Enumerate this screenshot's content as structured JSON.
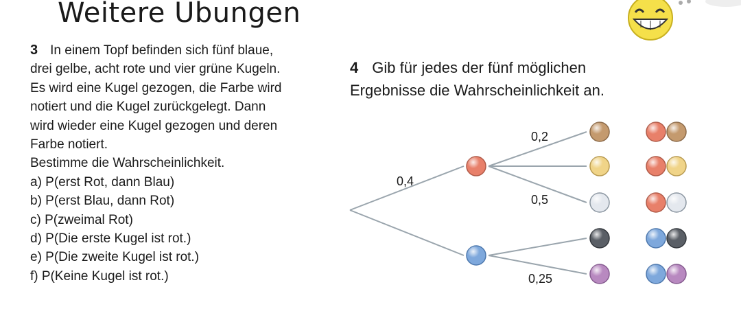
{
  "header": {
    "title": "Weitere Übungen"
  },
  "exercise3": {
    "number": "3",
    "lines": [
      "In einem Topf befinden sich fünf blaue,",
      "drei gelbe, acht rote und vier grüne Kugeln.",
      "Es wird eine Kugel gezogen, die Farbe wird",
      "notiert und die Kugel zurückgelegt. Dann",
      "wird wieder eine Kugel gezogen und deren",
      "Farbe notiert.",
      "Bestimme die Wahrscheinlichkeit."
    ],
    "tasks": [
      "a)  P(erst Rot, dann Blau)",
      "b)  P(erst Blau, dann Rot)",
      "c)  P(zweimal Rot)",
      "d)  P(Die erste Kugel ist rot.)",
      "e)  P(Die zweite Kugel ist rot.)",
      "f)  P(Keine Kugel ist rot.)"
    ]
  },
  "exercise4": {
    "number": "4",
    "lines": [
      "Gib für jedes der fünf möglichen",
      "Ergebnisse die Wahrscheinlichkeit an."
    ]
  },
  "tree": {
    "labels": {
      "first_red": "0,4",
      "red_brown": "0,2",
      "red_white": "0,5",
      "blue_purple": "0,25"
    },
    "colors": {
      "red": "#e8806a",
      "blue": "#7ea8dc",
      "brown": "#c49a6e",
      "yellow": "#f0d488",
      "white": "#e4e8ee",
      "dark": "#5a5f66",
      "purple": "#b889c0",
      "line": "#9aa5ad"
    }
  }
}
